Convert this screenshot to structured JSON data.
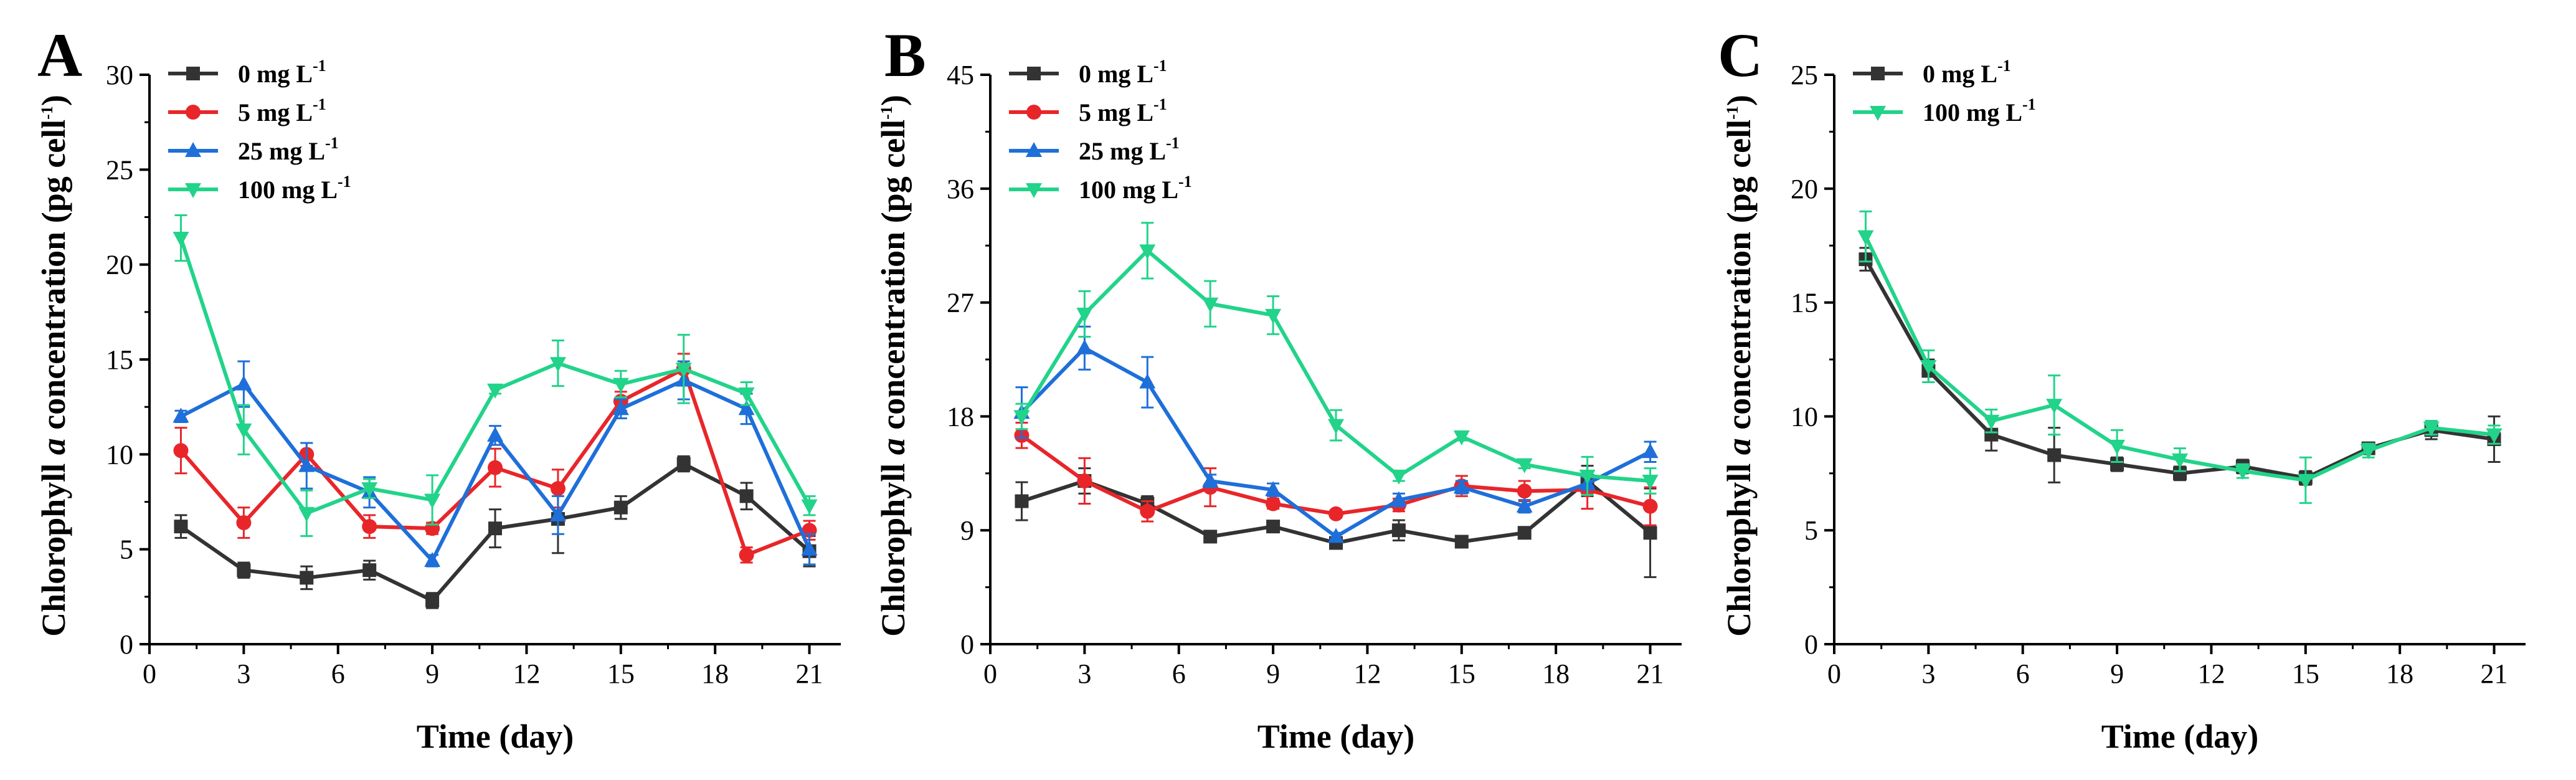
{
  "chart_data": [
    {
      "type": "line",
      "panel": "A",
      "xlabel": "Time (day)",
      "ylabel_main": "Chlorophyll ",
      "ylabel_italic": "a",
      "ylabel_rest": " concentration (pg cell",
      "ylabel_sup": "-1",
      "ylabel_close": ")",
      "xlim": [
        0,
        22
      ],
      "ylim": [
        0,
        30
      ],
      "xticks": [
        0,
        3,
        6,
        9,
        12,
        15,
        18,
        21
      ],
      "yticks": [
        0,
        5,
        10,
        15,
        20,
        25,
        30
      ],
      "legend_position": "top-left",
      "x": [
        1,
        3,
        5,
        7,
        9,
        11,
        13,
        15,
        17,
        19,
        21
      ],
      "series": [
        {
          "name": "0 mg L",
          "sup": "-1",
          "color": "#333333",
          "marker": "square",
          "values": [
            6.2,
            3.9,
            3.5,
            3.9,
            2.3,
            6.1,
            6.6,
            7.2,
            9.5,
            7.8,
            4.9
          ],
          "errors": [
            0.6,
            0.4,
            0.6,
            0.5,
            0.4,
            1.0,
            1.8,
            0.6,
            0.4,
            0.7,
            0.8
          ]
        },
        {
          "name": "5 mg L",
          "sup": "-1",
          "color": "#e8262a",
          "marker": "circle",
          "values": [
            10.2,
            6.4,
            10.0,
            6.2,
            6.1,
            9.3,
            8.2,
            12.8,
            14.5,
            4.7,
            6.0
          ],
          "errors": [
            1.2,
            0.8,
            0.6,
            0.6,
            0.3,
            1.0,
            1.0,
            0.5,
            0.8,
            0.4,
            0.5
          ]
        },
        {
          "name": "25 mg L",
          "sup": "-1",
          "color": "#1e6fd9",
          "marker": "triangle-up",
          "values": [
            12.0,
            13.7,
            9.4,
            8.0,
            4.4,
            11.0,
            6.8,
            12.4,
            13.9,
            12.4,
            5.0
          ],
          "errors": [
            0.3,
            1.2,
            1.2,
            0.8,
            0.3,
            0.5,
            1.0,
            0.5,
            1.0,
            0.8,
            0.8
          ]
        },
        {
          "name": "100 mg L",
          "sup": "-1",
          "color": "#22d38a",
          "marker": "triangle-down",
          "values": [
            21.4,
            11.3,
            6.9,
            8.2,
            7.6,
            13.4,
            14.8,
            13.7,
            14.5,
            13.2,
            7.3
          ],
          "errors": [
            1.2,
            1.3,
            1.2,
            0.5,
            1.3,
            0.2,
            1.2,
            0.7,
            1.8,
            0.6,
            0.5
          ]
        }
      ]
    },
    {
      "type": "line",
      "panel": "B",
      "xlabel": "Time (day)",
      "ylabel_main": "Chlorophyll ",
      "ylabel_italic": "a",
      "ylabel_rest": " concentration (pg cell",
      "ylabel_sup": "-1",
      "ylabel_close": ")",
      "xlim": [
        0,
        22
      ],
      "ylim": [
        0,
        45
      ],
      "xticks": [
        0,
        3,
        6,
        9,
        12,
        15,
        18,
        21
      ],
      "yticks": [
        0,
        9,
        18,
        27,
        36,
        45
      ],
      "legend_position": "top-left",
      "x": [
        1,
        3,
        5,
        7,
        9,
        11,
        13,
        15,
        17,
        19,
        21
      ],
      "series": [
        {
          "name": "0 mg L",
          "sup": "-1",
          "color": "#333333",
          "marker": "square",
          "values": [
            11.3,
            12.9,
            11.1,
            8.5,
            9.3,
            8.0,
            9.0,
            8.1,
            8.8,
            12.9,
            8.8
          ],
          "errors": [
            1.5,
            1.0,
            0.6,
            0.3,
            0.3,
            0.4,
            0.8,
            0.3,
            0.3,
            1.2,
            3.5
          ]
        },
        {
          "name": "5 mg L",
          "sup": "-1",
          "color": "#e8262a",
          "marker": "circle",
          "values": [
            16.5,
            12.9,
            10.5,
            12.4,
            11.1,
            10.3,
            11.0,
            12.5,
            12.1,
            12.2,
            10.9
          ],
          "errors": [
            1.0,
            1.8,
            0.8,
            1.5,
            0.4,
            0.3,
            0.5,
            0.8,
            0.8,
            1.5,
            1.5
          ]
        },
        {
          "name": "25 mg L",
          "sup": "-1",
          "color": "#1e6fd9",
          "marker": "triangle-up",
          "values": [
            18.3,
            23.4,
            20.7,
            12.9,
            12.2,
            8.5,
            11.4,
            12.4,
            10.9,
            12.7,
            15.2
          ],
          "errors": [
            2.0,
            1.7,
            2.0,
            0.5,
            0.5,
            0.3,
            0.5,
            0.5,
            0.5,
            0.5,
            0.8
          ]
        },
        {
          "name": "100 mg L",
          "sup": "-1",
          "color": "#22d38a",
          "marker": "triangle-down",
          "values": [
            18.0,
            26.1,
            31.1,
            26.9,
            26.0,
            17.3,
            13.3,
            16.4,
            14.2,
            13.3,
            12.9
          ],
          "errors": [
            1.0,
            1.8,
            2.2,
            1.8,
            1.5,
            1.2,
            0.4,
            0.3,
            0.3,
            1.5,
            1.0
          ]
        }
      ]
    },
    {
      "type": "line",
      "panel": "C",
      "xlabel": "Time (day)",
      "ylabel_main": "Chlorophyll ",
      "ylabel_italic": "a",
      "ylabel_rest": " concentration (pg cell",
      "ylabel_sup": "-1",
      "ylabel_close": ")",
      "xlim": [
        0,
        22
      ],
      "ylim": [
        0,
        25
      ],
      "xticks": [
        0,
        3,
        6,
        9,
        12,
        15,
        18,
        21
      ],
      "yticks": [
        0,
        5,
        10,
        15,
        20,
        25
      ],
      "legend_position": "top-left",
      "x": [
        1,
        3,
        5,
        7,
        9,
        11,
        13,
        15,
        17,
        19,
        21
      ],
      "series": [
        {
          "name": "0 mg L",
          "sup": "-1",
          "color": "#333333",
          "marker": "square",
          "values": [
            16.9,
            12.0,
            9.2,
            8.3,
            7.9,
            7.5,
            7.8,
            7.3,
            8.6,
            9.4,
            9.0
          ],
          "errors": [
            0.5,
            0.5,
            0.7,
            1.2,
            0.3,
            0.3,
            0.3,
            0.3,
            0.2,
            0.4,
            1.0
          ]
        },
        {
          "name": "100 mg L",
          "sup": "-1",
          "color": "#22d38a",
          "marker": "triangle-down",
          "values": [
            17.9,
            12.2,
            9.8,
            10.5,
            8.7,
            8.1,
            7.6,
            7.2,
            8.5,
            9.5,
            9.2
          ],
          "errors": [
            1.1,
            0.7,
            0.5,
            1.3,
            0.7,
            0.5,
            0.3,
            1.0,
            0.3,
            0.3,
            0.4
          ]
        }
      ]
    }
  ]
}
